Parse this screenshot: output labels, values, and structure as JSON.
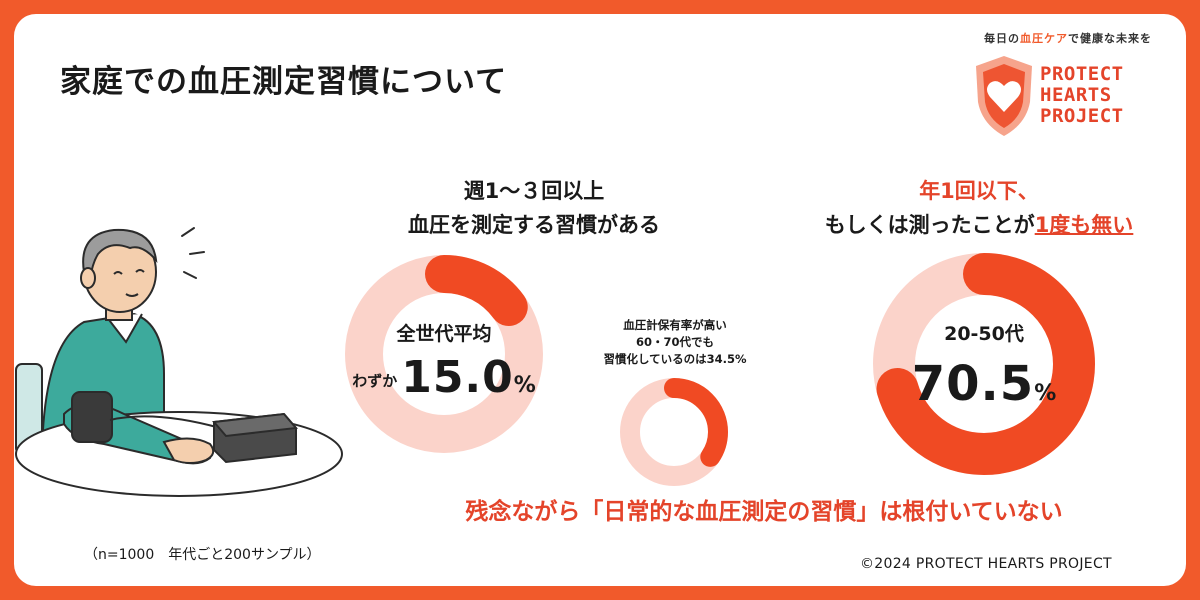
{
  "page": {
    "title": "家庭での血圧測定習慣について",
    "tagline": {
      "before": "毎日の",
      "highlight": "血圧ケア",
      "after": "で健康な未来を"
    },
    "logo_lines": [
      "PROTECT",
      "HEARTS",
      "PROJECT"
    ],
    "sample_note": "（n=1000　年代ごと200サンプル）",
    "copyright": "©2024 PROTECT HEARTS PROJECT",
    "conclusion": "残念ながら「日常的な血圧測定の習慣」は根付いていない"
  },
  "left": {
    "heading_line1": "週1～３回以上",
    "heading_line2": "血圧を測定する習慣がある",
    "caption": "全世代平均",
    "prefix": "わずか",
    "value_text": "15.0",
    "unit": "%"
  },
  "middle": {
    "lines": [
      "血圧計保有率が高い",
      "60・70代でも",
      "習慣化しているのは34.5%"
    ]
  },
  "right": {
    "heading_line1": "年1回以下、",
    "heading_line2_plain": "もしくは測ったことが",
    "heading_line2_underlined": "1度も無い",
    "caption": "20-50代",
    "value_text": "70.5",
    "unit": "%"
  },
  "colors": {
    "accent": "#F15A2B",
    "donut_fill": "#F04A23",
    "donut_track": "#FBD3CA"
  },
  "chart_data": [
    {
      "type": "pie",
      "variant": "donut",
      "label": "全世代平均",
      "values": [
        15.0,
        85.0
      ],
      "unit": "%"
    },
    {
      "type": "pie",
      "variant": "donut",
      "label": "60・70代",
      "values": [
        34.5,
        65.5
      ],
      "unit": "%"
    },
    {
      "type": "pie",
      "variant": "donut",
      "label": "20-50代",
      "values": [
        70.5,
        29.5
      ],
      "unit": "%"
    }
  ]
}
